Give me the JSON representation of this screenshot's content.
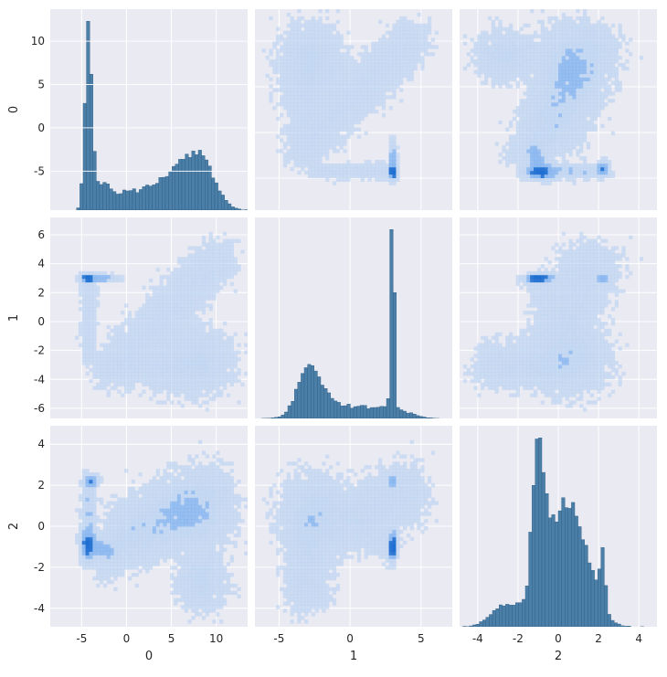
{
  "chart_data": {
    "type": "pairplot",
    "variables": [
      "0",
      "1",
      "2"
    ],
    "diagonal": "histogram",
    "off_diagonal": "2d histogram (density heatmap)",
    "style": {
      "background": "#EAEAF2",
      "grid": true,
      "grid_color": "#FFFFFF",
      "bar_fill": "#4C7FA8",
      "bar_edge": "#2B5C82",
      "heat_light": "#B9D2F1",
      "heat_mid": "#7FB2F0",
      "heat_dark": "#1F6FD1"
    },
    "axes": {
      "0": {
        "label": "0",
        "range": [
          -8.5,
          13.5
        ],
        "ticks": [
          -5,
          0,
          5,
          10
        ]
      },
      "1": {
        "label": "1",
        "range": [
          -6.7,
          7.2
        ],
        "ticks": [
          -6,
          -4,
          -2,
          0,
          2,
          4,
          6
        ],
        "x_ticks": [
          -5,
          0,
          5
        ]
      },
      "2": {
        "label": "2",
        "range": [
          -4.9,
          4.9
        ],
        "ticks": [
          -4,
          -2,
          0,
          2,
          4
        ]
      }
    },
    "marginals": {
      "0": {
        "ylim": [
          -9.5,
          13.7
        ],
        "ytick_labels": [
          -5,
          0,
          5,
          10
        ],
        "summary": "sharp peak near -4.3, broad second mode near 7"
      },
      "1": {
        "summary": "broad mode near -2.5, sharp peak near 3"
      },
      "2": {
        "summary": "peak near -0.9, shoulder near 0.6, spike near 2.2"
      }
    },
    "dense_points": {
      "1_vs_0": [
        3.0,
        -3.8
      ],
      "2_vs_0": [
        -0.9,
        -4.3
      ],
      "2_vs_1": [
        3.0,
        2.2
      ]
    }
  },
  "labels": {
    "row_labels": [
      "0",
      "1",
      "2"
    ],
    "col_labels": [
      "0",
      "1",
      "2"
    ]
  }
}
